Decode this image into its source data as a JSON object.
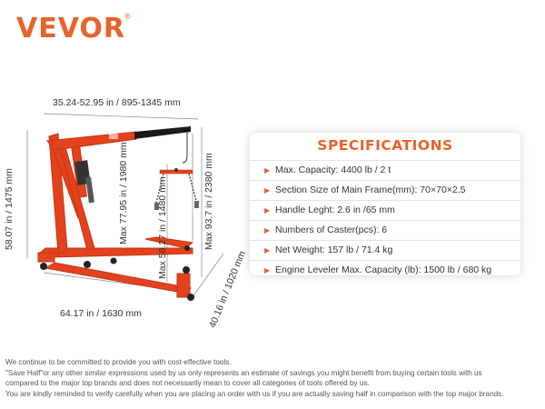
{
  "brand": {
    "name": "VEVOR",
    "registered": "®"
  },
  "dimensions": {
    "top_width": "35.24-52.95 in / 895-1345 mm",
    "left_height": "58.07 in / 1475 mm",
    "hook_height": "Max 77.95 in / 1980 mm",
    "leveler_height": "Max 58.27 in / 1480 mm",
    "right_height": "Max 93.7 in / 2380 mm",
    "base_length": "64.17 in / 1630 mm",
    "base_width": "40.16 in / 1020 mm"
  },
  "specs": {
    "title": "SPECIFICATIONS",
    "items": [
      "Max. Capacity: 4400 lb / 2 t",
      "Section Size of Main Frame(mm): 70×70×2.5",
      "Handle Leght: 2.6 in /65 mm",
      "Numbers of Caster(pcs): 6",
      "Net Weight: 157 lb / 71.4 kg",
      "Engine Leveler Max. Capacity (lb): 1500 lb / 680 kg"
    ]
  },
  "disclaimer": {
    "lines": [
      "We continue to be committed to provide you with cost-effective tools.",
      "\"Save Half\"or any other similar expressions used by us only represents an estimate of savings you might benefit from buying certain tools with us",
      "compared to the major top brands and does not necessarily mean to cover all categories of tools offered by us.",
      "You are kindly reminded to verify carefully when you are placing an order with us if you are actually saving half in comparison with the top major brands."
    ]
  },
  "colors": {
    "accent": "#e8632a",
    "frame_red": "#e4421d",
    "boom_black": "#1a1a1a",
    "text": "#333333"
  }
}
